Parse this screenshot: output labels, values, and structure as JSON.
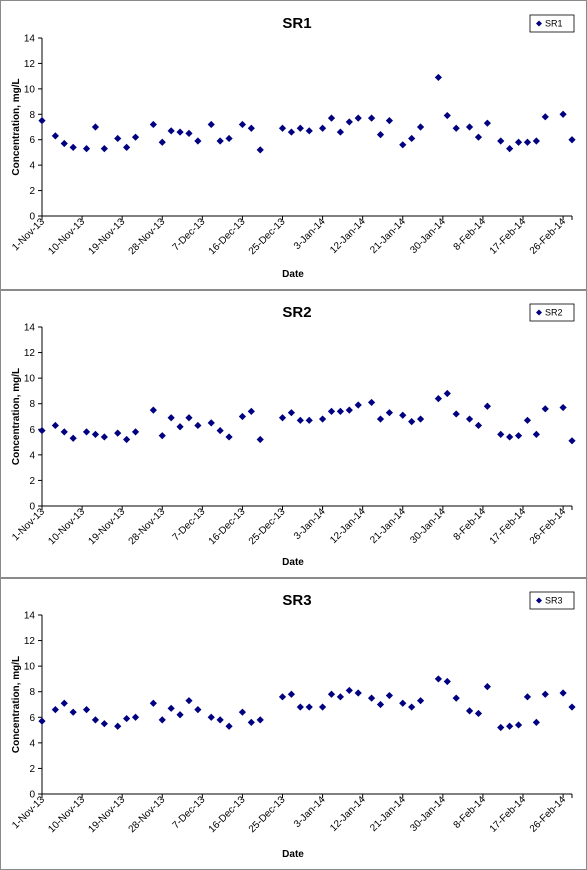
{
  "x_tick_labels": [
    "1-Nov-13",
    "10-Nov-13",
    "19-Nov-13",
    "28-Nov-13",
    "7-Dec-13",
    "16-Dec-13",
    "25-Dec-13",
    "3-Jan-14",
    "12-Jan-14",
    "21-Jan-14",
    "30-Jan-14",
    "8-Feb-14",
    "17-Feb-14",
    "26-Feb-14"
  ],
  "y_tick_labels": [
    "0",
    "2",
    "4",
    "6",
    "8",
    "10",
    "12",
    "14"
  ],
  "colors": {
    "marker": "#000080",
    "axis": "#000000",
    "frame": "#8a8a8a"
  },
  "chart_data": [
    {
      "type": "scatter",
      "title": "SR1",
      "xlabel": "Date",
      "ylabel": "Concentration, mg/L",
      "xlim": [
        "2013-11-01",
        "2014-02-28"
      ],
      "ylim": [
        0,
        14
      ],
      "grid": false,
      "legend": "top-right",
      "series": [
        {
          "name": "SR1",
          "points": [
            [
              "2013-11-01",
              7.5
            ],
            [
              "2013-11-04",
              6.3
            ],
            [
              "2013-11-06",
              5.7
            ],
            [
              "2013-11-08",
              5.4
            ],
            [
              "2013-11-11",
              5.3
            ],
            [
              "2013-11-13",
              7.0
            ],
            [
              "2013-11-15",
              5.3
            ],
            [
              "2013-11-18",
              6.1
            ],
            [
              "2013-11-20",
              5.4
            ],
            [
              "2013-11-22",
              6.2
            ],
            [
              "2013-11-26",
              7.2
            ],
            [
              "2013-11-28",
              5.8
            ],
            [
              "2013-11-30",
              6.7
            ],
            [
              "2013-12-02",
              6.6
            ],
            [
              "2013-12-04",
              6.5
            ],
            [
              "2013-12-06",
              5.9
            ],
            [
              "2013-12-09",
              7.2
            ],
            [
              "2013-12-11",
              5.9
            ],
            [
              "2013-12-13",
              6.1
            ],
            [
              "2013-12-16",
              7.2
            ],
            [
              "2013-12-18",
              6.9
            ],
            [
              "2013-12-20",
              5.2
            ],
            [
              "2013-12-25",
              6.9
            ],
            [
              "2013-12-27",
              6.6
            ],
            [
              "2013-12-29",
              6.9
            ],
            [
              "2013-12-31",
              6.7
            ],
            [
              "2014-01-03",
              6.9
            ],
            [
              "2014-01-05",
              7.7
            ],
            [
              "2014-01-07",
              6.6
            ],
            [
              "2014-01-09",
              7.4
            ],
            [
              "2014-01-11",
              7.7
            ],
            [
              "2014-01-14",
              7.7
            ],
            [
              "2014-01-16",
              6.4
            ],
            [
              "2014-01-18",
              7.5
            ],
            [
              "2014-01-21",
              5.6
            ],
            [
              "2014-01-23",
              6.1
            ],
            [
              "2014-01-25",
              7.0
            ],
            [
              "2014-01-29",
              10.9
            ],
            [
              "2014-01-31",
              7.9
            ],
            [
              "2014-02-02",
              6.9
            ],
            [
              "2014-02-05",
              7.0
            ],
            [
              "2014-02-07",
              6.2
            ],
            [
              "2014-02-09",
              7.3
            ],
            [
              "2014-02-12",
              5.9
            ],
            [
              "2014-02-14",
              5.3
            ],
            [
              "2014-02-16",
              5.8
            ],
            [
              "2014-02-18",
              5.8
            ],
            [
              "2014-02-20",
              5.9
            ],
            [
              "2014-02-22",
              7.8
            ],
            [
              "2014-02-26",
              8.0
            ],
            [
              "2014-02-28",
              6.0
            ]
          ]
        }
      ]
    },
    {
      "type": "scatter",
      "title": "SR2",
      "xlabel": "Date",
      "ylabel": "Concentration, mg/L",
      "xlim": [
        "2013-11-01",
        "2014-02-28"
      ],
      "ylim": [
        0,
        14
      ],
      "grid": false,
      "legend": "top-right",
      "series": [
        {
          "name": "SR2",
          "points": [
            [
              "2013-11-01",
              5.9
            ],
            [
              "2013-11-04",
              6.3
            ],
            [
              "2013-11-06",
              5.8
            ],
            [
              "2013-11-08",
              5.3
            ],
            [
              "2013-11-11",
              5.8
            ],
            [
              "2013-11-13",
              5.6
            ],
            [
              "2013-11-15",
              5.4
            ],
            [
              "2013-11-18",
              5.7
            ],
            [
              "2013-11-20",
              5.2
            ],
            [
              "2013-11-22",
              5.8
            ],
            [
              "2013-11-26",
              7.5
            ],
            [
              "2013-11-28",
              5.5
            ],
            [
              "2013-11-30",
              6.9
            ],
            [
              "2013-12-02",
              6.2
            ],
            [
              "2013-12-04",
              6.9
            ],
            [
              "2013-12-06",
              6.3
            ],
            [
              "2013-12-09",
              6.5
            ],
            [
              "2013-12-11",
              5.9
            ],
            [
              "2013-12-13",
              5.4
            ],
            [
              "2013-12-16",
              7.0
            ],
            [
              "2013-12-18",
              7.4
            ],
            [
              "2013-12-20",
              5.2
            ],
            [
              "2013-12-25",
              6.9
            ],
            [
              "2013-12-27",
              7.3
            ],
            [
              "2013-12-29",
              6.7
            ],
            [
              "2013-12-31",
              6.7
            ],
            [
              "2014-01-03",
              6.8
            ],
            [
              "2014-01-05",
              7.4
            ],
            [
              "2014-01-07",
              7.4
            ],
            [
              "2014-01-09",
              7.5
            ],
            [
              "2014-01-11",
              7.9
            ],
            [
              "2014-01-14",
              8.1
            ],
            [
              "2014-01-16",
              6.8
            ],
            [
              "2014-01-18",
              7.3
            ],
            [
              "2014-01-21",
              7.1
            ],
            [
              "2014-01-23",
              6.6
            ],
            [
              "2014-01-25",
              6.8
            ],
            [
              "2014-01-29",
              8.4
            ],
            [
              "2014-01-31",
              8.8
            ],
            [
              "2014-02-02",
              7.2
            ],
            [
              "2014-02-05",
              6.8
            ],
            [
              "2014-02-07",
              6.3
            ],
            [
              "2014-02-09",
              7.8
            ],
            [
              "2014-02-12",
              5.6
            ],
            [
              "2014-02-14",
              5.4
            ],
            [
              "2014-02-16",
              5.5
            ],
            [
              "2014-02-18",
              6.7
            ],
            [
              "2014-02-20",
              5.6
            ],
            [
              "2014-02-22",
              7.6
            ],
            [
              "2014-02-26",
              7.7
            ],
            [
              "2014-02-28",
              5.1
            ]
          ]
        }
      ]
    },
    {
      "type": "scatter",
      "title": "SR3",
      "xlabel": "Date",
      "ylabel": "Concentration, mg/L",
      "xlim": [
        "2013-11-01",
        "2014-02-28"
      ],
      "ylim": [
        0,
        14
      ],
      "grid": false,
      "legend": "top-right",
      "series": [
        {
          "name": "SR3",
          "points": [
            [
              "2013-11-01",
              5.7
            ],
            [
              "2013-11-04",
              6.6
            ],
            [
              "2013-11-06",
              7.1
            ],
            [
              "2013-11-08",
              6.4
            ],
            [
              "2013-11-11",
              6.6
            ],
            [
              "2013-11-13",
              5.8
            ],
            [
              "2013-11-15",
              5.5
            ],
            [
              "2013-11-18",
              5.3
            ],
            [
              "2013-11-20",
              5.9
            ],
            [
              "2013-11-22",
              6.0
            ],
            [
              "2013-11-26",
              7.1
            ],
            [
              "2013-11-28",
              5.8
            ],
            [
              "2013-11-30",
              6.7
            ],
            [
              "2013-12-02",
              6.2
            ],
            [
              "2013-12-04",
              7.3
            ],
            [
              "2013-12-06",
              6.6
            ],
            [
              "2013-12-09",
              6.0
            ],
            [
              "2013-12-11",
              5.8
            ],
            [
              "2013-12-13",
              5.3
            ],
            [
              "2013-12-16",
              6.4
            ],
            [
              "2013-12-18",
              5.6
            ],
            [
              "2013-12-20",
              5.8
            ],
            [
              "2013-12-25",
              7.6
            ],
            [
              "2013-12-27",
              7.8
            ],
            [
              "2013-12-29",
              6.8
            ],
            [
              "2013-12-31",
              6.8
            ],
            [
              "2014-01-03",
              6.8
            ],
            [
              "2014-01-05",
              7.8
            ],
            [
              "2014-01-07",
              7.6
            ],
            [
              "2014-01-09",
              8.1
            ],
            [
              "2014-01-11",
              7.9
            ],
            [
              "2014-01-14",
              7.5
            ],
            [
              "2014-01-16",
              7.0
            ],
            [
              "2014-01-18",
              7.7
            ],
            [
              "2014-01-21",
              7.1
            ],
            [
              "2014-01-23",
              6.8
            ],
            [
              "2014-01-25",
              7.3
            ],
            [
              "2014-01-29",
              9.0
            ],
            [
              "2014-01-31",
              8.8
            ],
            [
              "2014-02-02",
              7.5
            ],
            [
              "2014-02-05",
              6.5
            ],
            [
              "2014-02-07",
              6.3
            ],
            [
              "2014-02-09",
              8.4
            ],
            [
              "2014-02-12",
              5.2
            ],
            [
              "2014-02-14",
              5.3
            ],
            [
              "2014-02-16",
              5.4
            ],
            [
              "2014-02-18",
              7.6
            ],
            [
              "2014-02-20",
              5.6
            ],
            [
              "2014-02-22",
              7.8
            ],
            [
              "2014-02-26",
              7.9
            ],
            [
              "2014-02-28",
              6.8
            ]
          ]
        }
      ]
    }
  ]
}
